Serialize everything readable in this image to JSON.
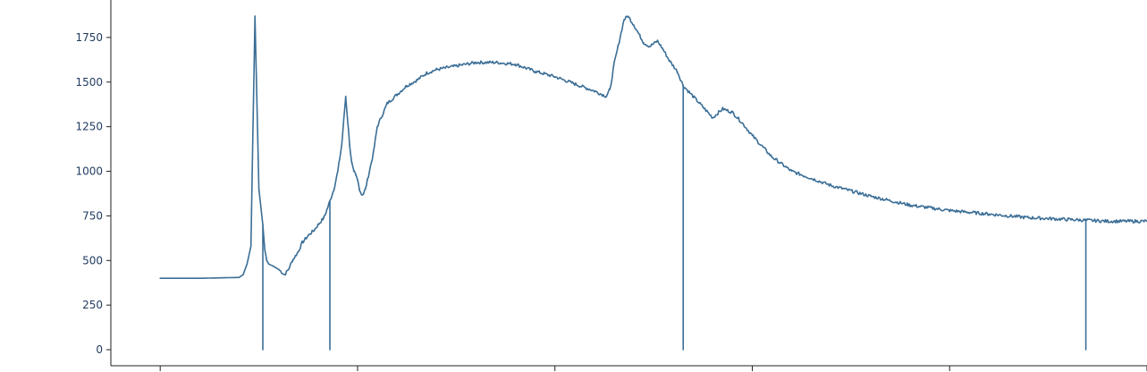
{
  "chart_data": {
    "type": "line",
    "title": "",
    "xlabel": "",
    "ylabel": "",
    "ylim": [
      -90,
      1960
    ],
    "xlim": [
      -25,
      500
    ],
    "yticks": [
      0,
      250,
      500,
      750,
      1000,
      1250,
      1500,
      1750
    ],
    "ytick_labels": [
      "0",
      "250",
      "500",
      "750",
      "1000",
      "1250",
      "1500",
      "1750"
    ],
    "xticks": [
      0,
      100,
      200,
      300,
      400,
      500
    ],
    "grid": false,
    "line_color": "#3b6e96",
    "series": [
      {
        "x": [
          0,
          20,
          40,
          42,
          44,
          46,
          48,
          50,
          52,
          53,
          54,
          55,
          57,
          60,
          63,
          65,
          67,
          70,
          72,
          75,
          78,
          80,
          83,
          85,
          88,
          90,
          92,
          94,
          96,
          97,
          98,
          99,
          100,
          101,
          102,
          103,
          104,
          105,
          107,
          108,
          110,
          115,
          120,
          125,
          130,
          135,
          140,
          150,
          160,
          170,
          180,
          190,
          200,
          210,
          220,
          226,
          228,
          230,
          232,
          235,
          237,
          240,
          243,
          245,
          248,
          252,
          255,
          258,
          262,
          265,
          270,
          275,
          280,
          285,
          290,
          295,
          300,
          310,
          320,
          340,
          360,
          380,
          400,
          420,
          440,
          460,
          480,
          500
        ],
        "y": [
          400,
          400,
          405,
          420,
          480,
          580,
          1870,
          900,
          700,
          560,
          500,
          480,
          470,
          450,
          420,
          450,
          500,
          550,
          600,
          640,
          670,
          700,
          740,
          800,
          900,
          1000,
          1150,
          1420,
          1150,
          1050,
          1000,
          980,
          950,
          900,
          870,
          875,
          900,
          950,
          1050,
          1100,
          1250,
          1380,
          1430,
          1480,
          1510,
          1550,
          1570,
          1590,
          1610,
          1610,
          1600,
          1560,
          1530,
          1490,
          1450,
          1420,
          1460,
          1600,
          1700,
          1850,
          1870,
          1820,
          1760,
          1720,
          1700,
          1730,
          1680,
          1620,
          1560,
          1480,
          1420,
          1360,
          1300,
          1350,
          1330,
          1270,
          1200,
          1080,
          1000,
          920,
          860,
          810,
          780,
          760,
          740,
          730,
          720,
          720
        ]
      }
    ],
    "drop_spikes_x": [
      52,
      86,
      265,
      469
    ]
  }
}
